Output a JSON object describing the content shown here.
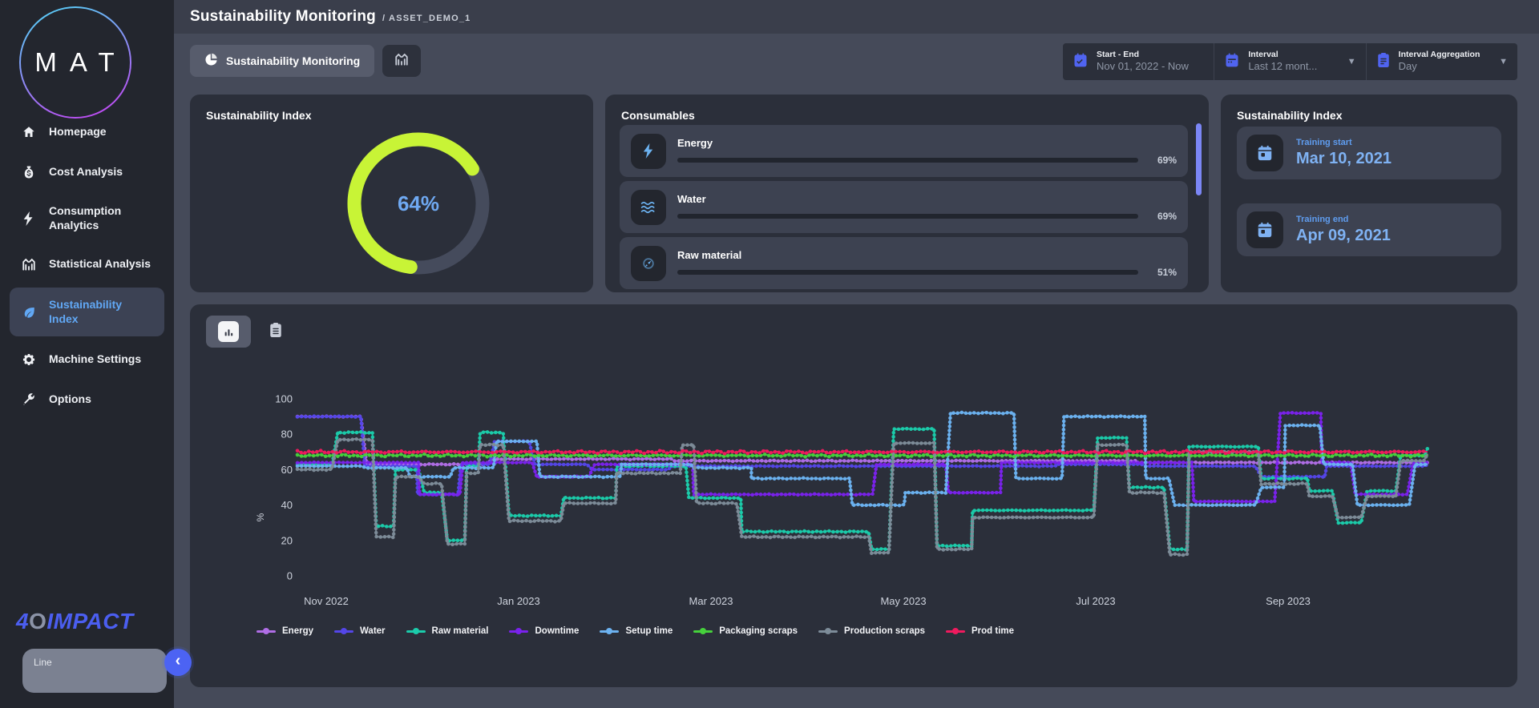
{
  "header": {
    "title": "Sustainability Monitoring",
    "breadcrumb": "/ ASSET_DEMO_1"
  },
  "tabs": {
    "main": {
      "label": "Sustainability Monitoring",
      "icon": "pie-chart-icon"
    },
    "secondary": {
      "icon": "stats-icon"
    }
  },
  "filters": {
    "start_end": {
      "label": "Start - End",
      "value": "Nov 01, 2022 - Now",
      "icon": "calendar-check-icon"
    },
    "interval": {
      "label": "Interval",
      "value": "Last 12 mont...",
      "icon": "calendar-icon"
    },
    "aggregation": {
      "label": "Interval Aggregation",
      "value": "Day",
      "icon": "clipboard-icon"
    }
  },
  "sidebar": {
    "logo": "MAT",
    "brand": {
      "part1": "4",
      "part2": "O",
      "part3": "IMPACT"
    },
    "items": [
      {
        "label": "Homepage",
        "icon": "home-icon",
        "active": false
      },
      {
        "label": "Cost Analysis",
        "icon": "cost-icon",
        "active": false
      },
      {
        "label": "Consumption Analytics",
        "icon": "bolt-icon",
        "active": false
      },
      {
        "label": "Statistical Analysis",
        "icon": "stats-icon",
        "active": false
      },
      {
        "label": "Sustainability Index",
        "icon": "leaf-icon",
        "active": true
      },
      {
        "label": "Machine Settings",
        "icon": "gear-icon",
        "active": false
      },
      {
        "label": "Options",
        "icon": "wrench-icon",
        "active": false
      }
    ],
    "line_box_label": "Line"
  },
  "gauge_card": {
    "title": "Sustainability Index",
    "percent": 64,
    "value_label": "64%",
    "arc_color": "#c8f436",
    "track_color": "#454b5c",
    "value_color": "#6fa9f2"
  },
  "consumables_card": {
    "title": "Consumables",
    "items": [
      {
        "name": "Energy",
        "percent": 69,
        "pct_label": "69%",
        "icon": "energy-icon"
      },
      {
        "name": "Water",
        "percent": 69,
        "pct_label": "69%",
        "icon": "water-icon"
      },
      {
        "name": "Raw material",
        "percent": 51,
        "pct_label": "51%",
        "icon": "raw-material-icon"
      }
    ],
    "bar_color": "#c8f436"
  },
  "training_card": {
    "title": "Sustainability Index",
    "rows": [
      {
        "label": "Training start",
        "value": "Mar 10, 2021",
        "icon": "calendar-icon"
      },
      {
        "label": "Training end",
        "value": "Apr 09, 2021",
        "icon": "calendar-icon"
      }
    ]
  },
  "chart_data": {
    "type": "line",
    "style": "step-dotted",
    "ylabel": "%",
    "xlabel": "",
    "ylim": [
      0,
      100
    ],
    "yticks": [
      0,
      20,
      40,
      60,
      80,
      100
    ],
    "xtick_labels": [
      "Nov 2022",
      "Jan 2023",
      "Mar 2023",
      "May 2023",
      "Jul 2023",
      "Sep 2023"
    ],
    "xtick_months": [
      0.6,
      2.6,
      4.6,
      6.6,
      8.6,
      10.6
    ],
    "xrange_months": [
      0.3,
      12.05
    ],
    "grid": false,
    "legend_position": "bottom",
    "series": [
      {
        "name": "Energy",
        "color": "#b06ee6",
        "noise": 0.25,
        "steps": [
          [
            0.3,
            90
          ],
          [
            1.02,
            63
          ],
          [
            2.32,
            66
          ],
          [
            4.22,
            65
          ],
          [
            9.02,
            64
          ],
          [
            12.05,
            64
          ]
        ]
      },
      {
        "name": "Water",
        "color": "#5446e8",
        "noise": 0.2,
        "steps": [
          [
            0.3,
            90
          ],
          [
            1.0,
            62
          ],
          [
            1.55,
            46
          ],
          [
            2.0,
            63
          ],
          [
            2.35,
            76
          ],
          [
            2.77,
            63
          ],
          [
            3.37,
            60
          ],
          [
            4.2,
            62
          ],
          [
            6.15,
            62
          ],
          [
            8.2,
            63
          ],
          [
            9.12,
            62
          ],
          [
            10.32,
            56
          ],
          [
            11.0,
            62
          ],
          [
            12.05,
            63
          ]
        ]
      },
      {
        "name": "Raw material",
        "color": "#1bccab",
        "noise": 0.3,
        "steps": [
          [
            0.3,
            63
          ],
          [
            0.72,
            81
          ],
          [
            1.12,
            28
          ],
          [
            1.32,
            60
          ],
          [
            1.62,
            47
          ],
          [
            1.86,
            20
          ],
          [
            2.06,
            62
          ],
          [
            2.2,
            81
          ],
          [
            2.5,
            34
          ],
          [
            3.07,
            44
          ],
          [
            3.62,
            62
          ],
          [
            4.37,
            44
          ],
          [
            4.92,
            25
          ],
          [
            6.27,
            15
          ],
          [
            6.5,
            83
          ],
          [
            6.95,
            17
          ],
          [
            7.32,
            37
          ],
          [
            8.62,
            78
          ],
          [
            8.95,
            50
          ],
          [
            9.37,
            15
          ],
          [
            9.57,
            73
          ],
          [
            10.32,
            55
          ],
          [
            10.82,
            48
          ],
          [
            11.12,
            30
          ],
          [
            11.42,
            48
          ],
          [
            11.77,
            68
          ],
          [
            12.05,
            72
          ]
        ]
      },
      {
        "name": "Downtime",
        "color": "#7a22ec",
        "noise": 0.2,
        "steps": [
          [
            0.3,
            64
          ],
          [
            1.57,
            46
          ],
          [
            2.02,
            64
          ],
          [
            2.79,
            56
          ],
          [
            3.39,
            63
          ],
          [
            4.42,
            46
          ],
          [
            6.32,
            63
          ],
          [
            7.07,
            47
          ],
          [
            7.62,
            64
          ],
          [
            9.62,
            42
          ],
          [
            10.52,
            92
          ],
          [
            10.95,
            64
          ],
          [
            11.3,
            46
          ],
          [
            11.9,
            64
          ],
          [
            12.05,
            64
          ]
        ]
      },
      {
        "name": "Setup time",
        "color": "#6cb2f0",
        "noise": 0.25,
        "steps": [
          [
            0.3,
            62
          ],
          [
            1.02,
            61
          ],
          [
            1.47,
            56
          ],
          [
            1.92,
            61
          ],
          [
            2.37,
            76
          ],
          [
            2.82,
            56
          ],
          [
            3.67,
            63
          ],
          [
            4.42,
            61
          ],
          [
            5.02,
            55
          ],
          [
            6.07,
            40
          ],
          [
            6.62,
            47
          ],
          [
            7.09,
            92
          ],
          [
            7.77,
            55
          ],
          [
            8.27,
            90
          ],
          [
            9.12,
            55
          ],
          [
            9.42,
            40
          ],
          [
            10.32,
            50
          ],
          [
            10.57,
            85
          ],
          [
            10.97,
            63
          ],
          [
            11.32,
            40
          ],
          [
            11.92,
            63
          ],
          [
            12.05,
            63
          ]
        ]
      },
      {
        "name": "Packaging scraps",
        "color": "#46d13c",
        "noise": 0.6,
        "steps": [
          [
            0.3,
            68
          ],
          [
            12.05,
            68
          ]
        ]
      },
      {
        "name": "Production scraps",
        "color": "#7d8c99",
        "noise": 0.3,
        "steps": [
          [
            0.3,
            60
          ],
          [
            0.72,
            77
          ],
          [
            1.12,
            22
          ],
          [
            1.32,
            56
          ],
          [
            1.62,
            52
          ],
          [
            1.86,
            18
          ],
          [
            2.06,
            58
          ],
          [
            2.2,
            74
          ],
          [
            2.5,
            31
          ],
          [
            3.07,
            41
          ],
          [
            3.62,
            58
          ],
          [
            4.3,
            74
          ],
          [
            4.45,
            41
          ],
          [
            4.92,
            22
          ],
          [
            6.27,
            13
          ],
          [
            6.5,
            75
          ],
          [
            6.95,
            15
          ],
          [
            7.32,
            33
          ],
          [
            8.62,
            74
          ],
          [
            8.95,
            47
          ],
          [
            9.37,
            12
          ],
          [
            9.57,
            70
          ],
          [
            10.32,
            52
          ],
          [
            10.82,
            45
          ],
          [
            11.12,
            33
          ],
          [
            11.42,
            45
          ],
          [
            11.77,
            65
          ],
          [
            12.05,
            69
          ]
        ]
      },
      {
        "name": "Prod time",
        "color": "#f01a5e",
        "noise": 0.7,
        "steps": [
          [
            0.3,
            70
          ],
          [
            12.05,
            70
          ]
        ]
      }
    ]
  }
}
